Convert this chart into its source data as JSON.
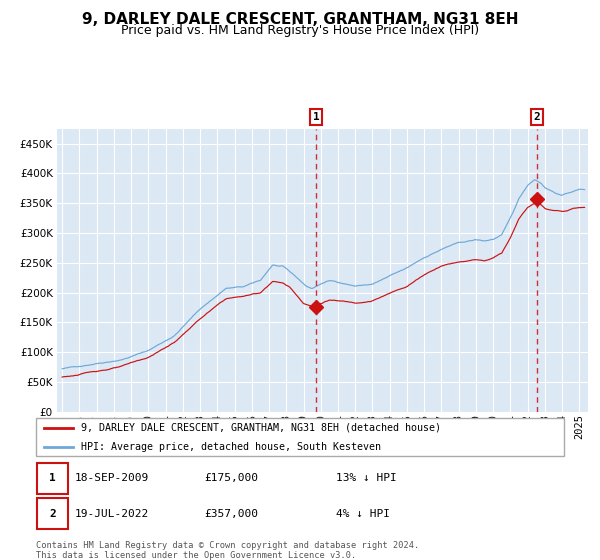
{
  "title": "9, DARLEY DALE CRESCENT, GRANTHAM, NG31 8EH",
  "subtitle": "Price paid vs. HM Land Registry's House Price Index (HPI)",
  "xlim_start": 1994.7,
  "xlim_end": 2025.5,
  "ylim": [
    0,
    475000
  ],
  "yticks": [
    0,
    50000,
    100000,
    150000,
    200000,
    250000,
    300000,
    350000,
    400000,
    450000
  ],
  "background_color": "#ffffff",
  "plot_bg_color": "#dce9f5",
  "grid_color": "#ffffff",
  "hpi_color": "#6fa8d8",
  "price_color": "#cc1111",
  "sale1_date": 2009.72,
  "sale1_price": 175000,
  "sale2_date": 2022.54,
  "sale2_price": 357000,
  "legend_label1": "9, DARLEY DALE CRESCENT, GRANTHAM, NG31 8EH (detached house)",
  "legend_label2": "HPI: Average price, detached house, South Kesteven",
  "table_row1": [
    "1",
    "18-SEP-2009",
    "£175,000",
    "13% ↓ HPI"
  ],
  "table_row2": [
    "2",
    "19-JUL-2022",
    "£357,000",
    "4% ↓ HPI"
  ],
  "footnote": "Contains HM Land Registry data © Crown copyright and database right 2024.\nThis data is licensed under the Open Government Licence v3.0.",
  "title_fontsize": 11,
  "subtitle_fontsize": 9,
  "tick_fontsize": 7.5
}
